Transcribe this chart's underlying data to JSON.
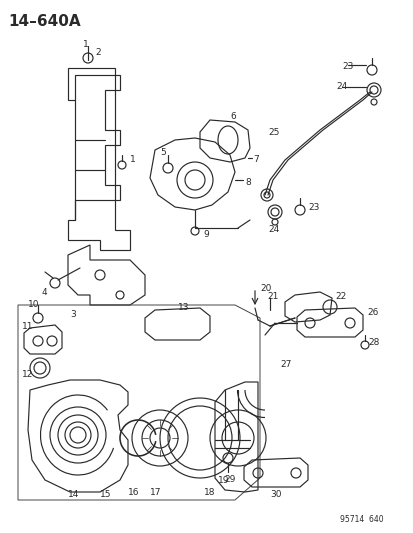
{
  "title": "14–640A",
  "watermark": "95714  640",
  "bg_color": "#ffffff",
  "text_color": "#1a1a1a",
  "title_fontsize": 11,
  "label_fontsize": 6.5,
  "fig_width": 4.14,
  "fig_height": 5.33,
  "dpi": 100
}
